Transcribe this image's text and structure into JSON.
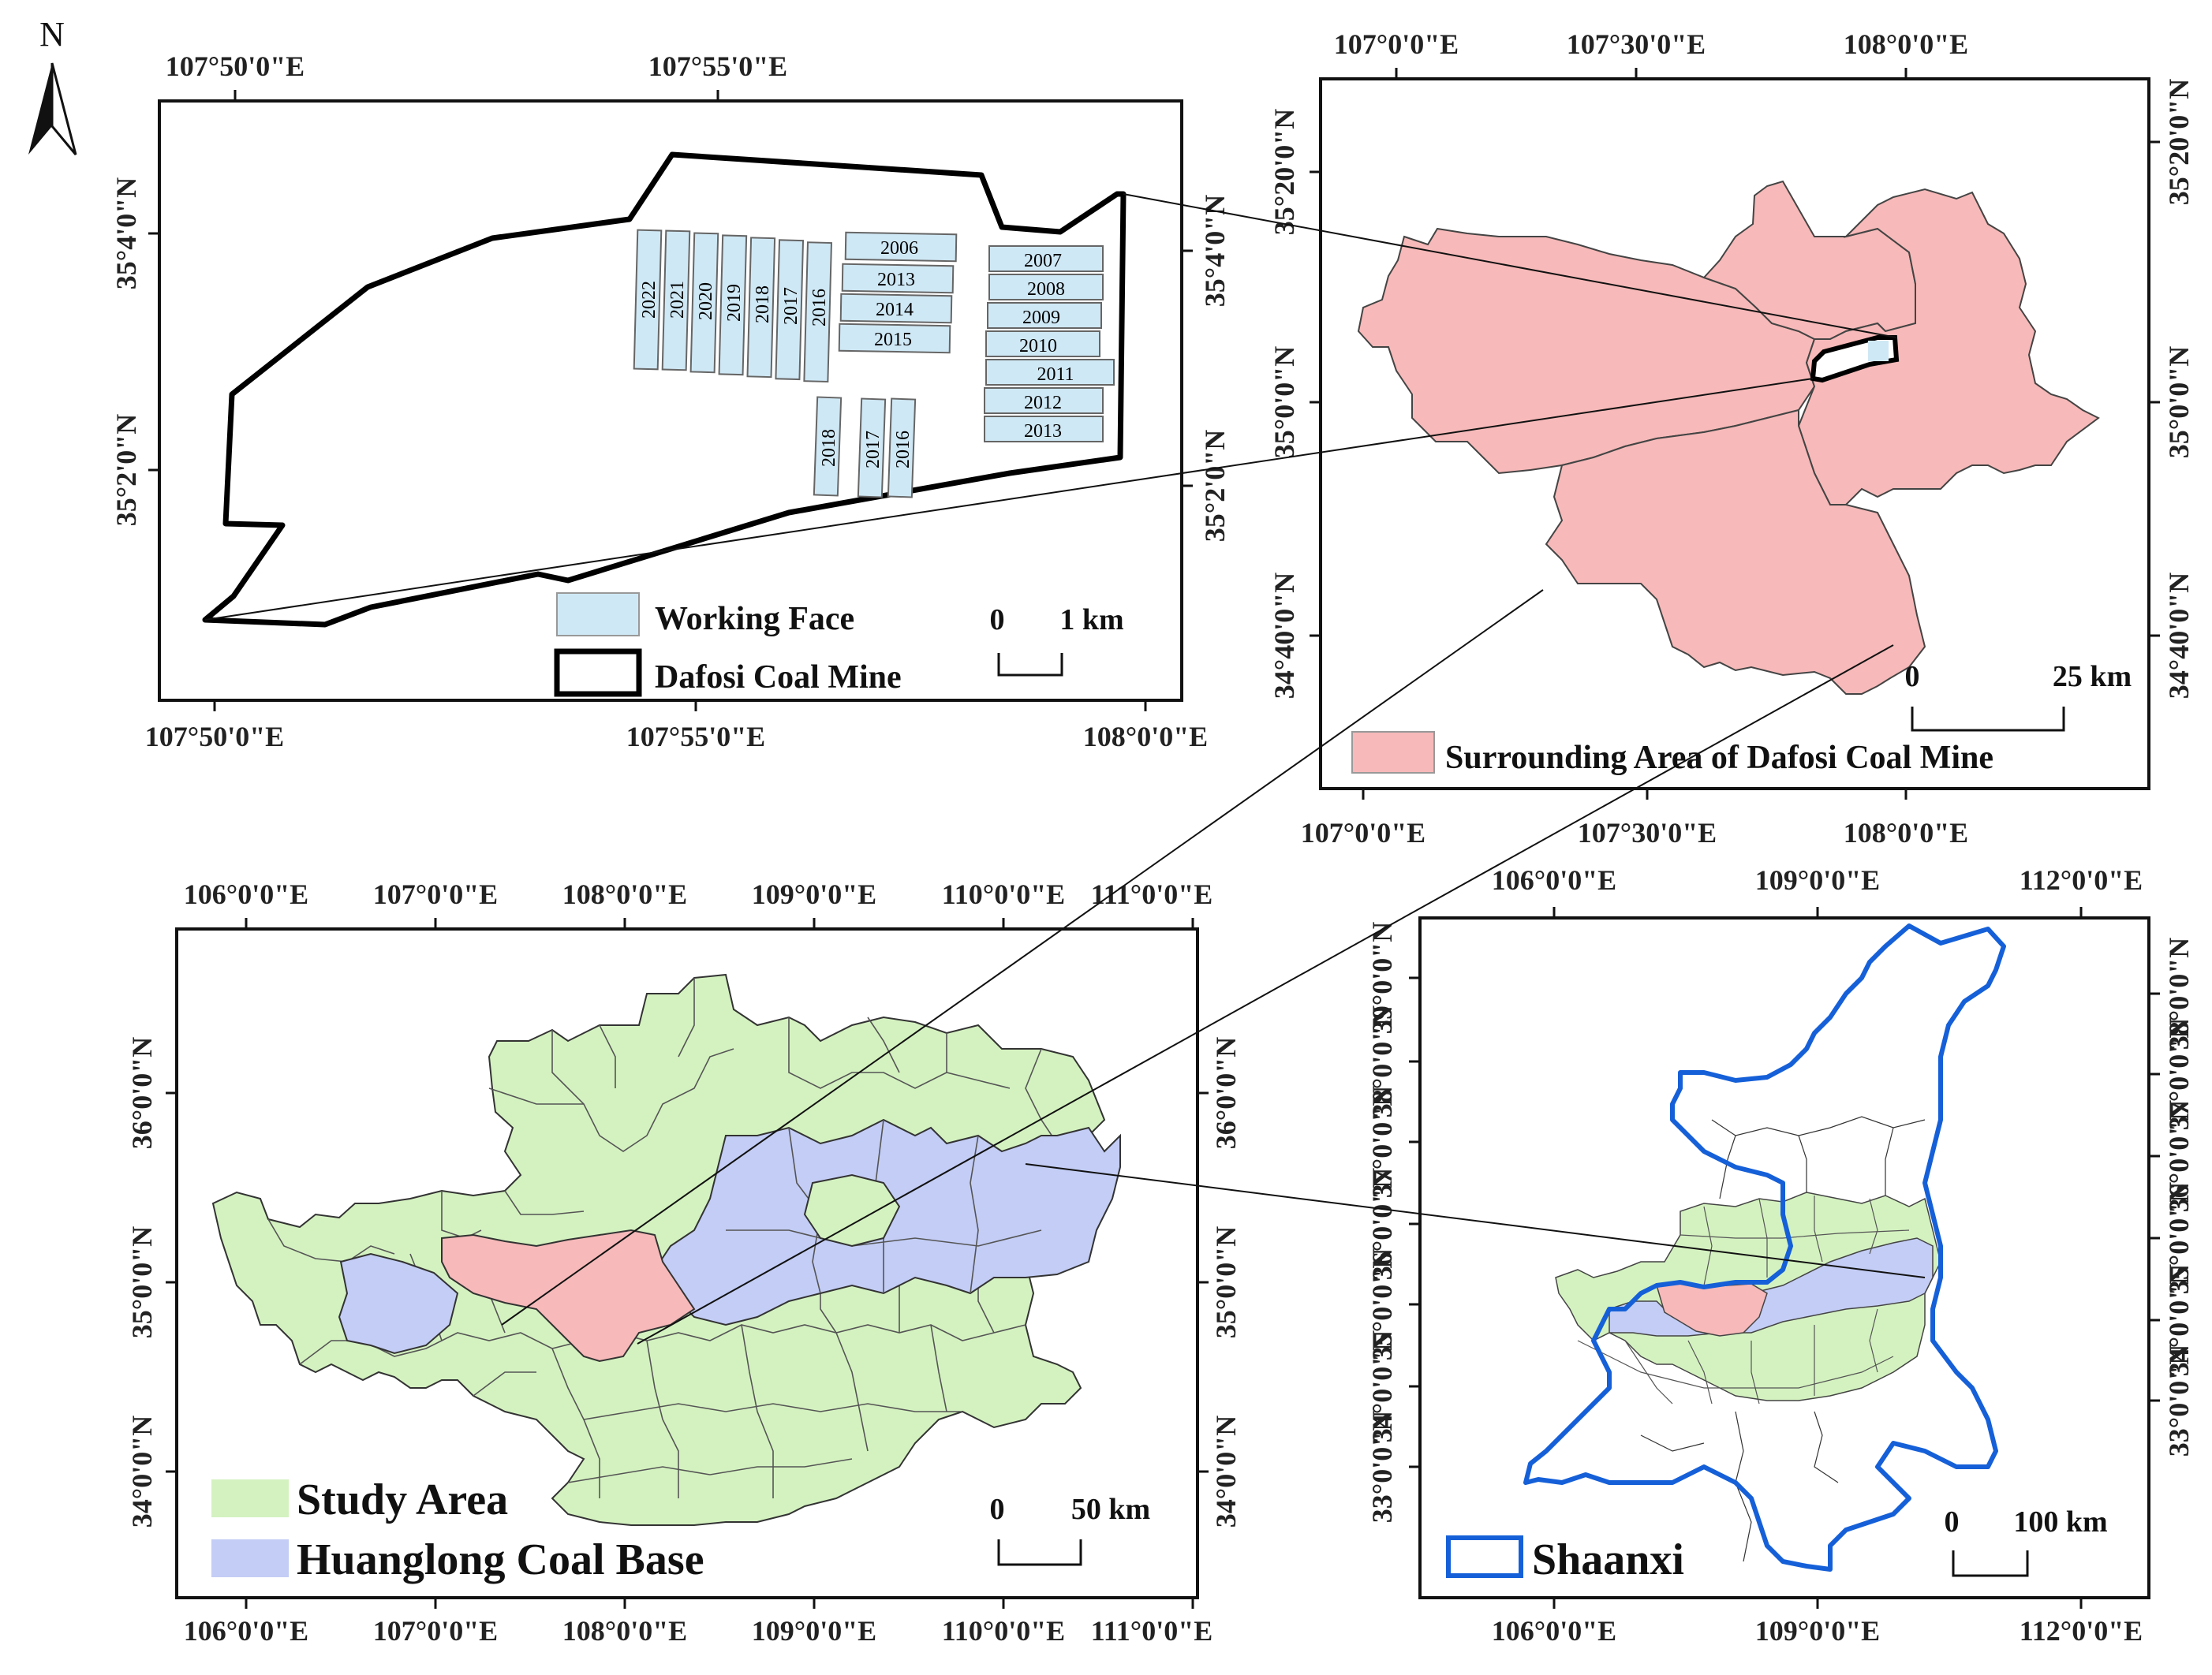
{
  "north_arrow": {
    "letter": "N"
  },
  "panel_a": {
    "top_ticks": [
      "107°50'0\"E",
      "107°55'0\"E"
    ],
    "bottom_ticks": [
      "107°50'0\"E",
      "107°55'0\"E",
      "108°0'0\"E"
    ],
    "left_ticks": [
      "35°4'0\"N",
      "35°2'0\"N"
    ],
    "right_ticks": [
      "35°4'0\"N",
      "35°2'0\"N"
    ],
    "working_faces_top": [
      "2022",
      "2021",
      "2020",
      "2019",
      "2018",
      "2017",
      "2016"
    ],
    "working_faces_mid": [
      "2006",
      "2013",
      "2014",
      "2015"
    ],
    "working_faces_right": [
      "2007",
      "2008",
      "2009",
      "2010",
      "2011",
      "2012",
      "2013"
    ],
    "working_faces_low": [
      "2018",
      "2017",
      "2016"
    ],
    "legend": {
      "working_face": "Working Face",
      "mine": "Dafosi Coal Mine"
    },
    "scale": {
      "start": "0",
      "end": "1 km"
    },
    "colors": {
      "working_face": "#cfe8f5",
      "outline": "#000000"
    }
  },
  "panel_b": {
    "top_ticks": [
      "107°0'0\"E",
      "107°30'0\"E",
      "108°0'0\"E"
    ],
    "bottom_ticks": [
      "107°0'0\"E",
      "107°30'0\"E",
      "108°0'0\"E"
    ],
    "left_ticks": [
      "35°20'0\"N",
      "35°0'0\"N",
      "34°40'0\"N"
    ],
    "right_ticks": [
      "35°20'0\"N",
      "35°0'0\"N",
      "34°40'0\"N"
    ],
    "legend": {
      "surrounding": "Surrounding Area of Dafosi Coal Mine"
    },
    "scale": {
      "start": "0",
      "end": "25 km"
    },
    "colors": {
      "surrounding": "#f7b9b9"
    }
  },
  "panel_c": {
    "top_ticks": [
      "106°0'0\"E",
      "107°0'0\"E",
      "108°0'0\"E",
      "109°0'0\"E",
      "110°0'0\"E",
      "111°0'0\"E"
    ],
    "bottom_ticks": [
      "106°0'0\"E",
      "107°0'0\"E",
      "108°0'0\"E",
      "109°0'0\"E",
      "110°0'0\"E",
      "111°0'0\"E"
    ],
    "left_ticks": [
      "36°0'0\"N",
      "35°0'0\"N",
      "34°0'0\"N"
    ],
    "right_ticks": [
      "36°0'0\"N",
      "35°0'0\"N",
      "34°0'0\"N"
    ],
    "legend": {
      "study": "Study Area",
      "coal_base": "Huanglong Coal  Base"
    },
    "scale": {
      "start": "0",
      "end": "50 km"
    },
    "colors": {
      "study": "#d4f2c0",
      "coal_base": "#c3cdf5",
      "surrounding": "#f7b9b9"
    }
  },
  "panel_d": {
    "top_ticks": [
      "106°0'0\"E",
      "109°0'0\"E",
      "112°0'0\"E"
    ],
    "bottom_ticks": [
      "106°0'0\"E",
      "109°0'0\"E",
      "112°0'0\"E"
    ],
    "left_ticks": [
      "39°0'0\"N",
      "38°0'0\"N",
      "37°0'0\"N",
      "36°0'0\"N",
      "35°0'0\"N",
      "34°0'0\"N",
      "33°0'0\"N"
    ],
    "right_ticks": [
      "38°0'0\"N",
      "37°0'0\"N",
      "36°0'0\"N",
      "35°0'0\"N",
      "34°0'0\"N",
      "33°0'0\"N"
    ],
    "legend": {
      "shaanxi": "Shaanxi"
    },
    "scale": {
      "start": "0",
      "end": "100 km"
    },
    "colors": {
      "shaanxi": "#1560d8"
    }
  }
}
